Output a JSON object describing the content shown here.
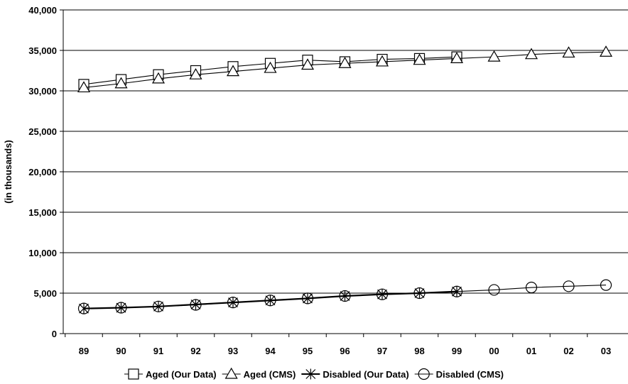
{
  "chart_data": {
    "type": "line",
    "title": "",
    "xlabel": "",
    "ylabel": "(in thousands)",
    "categories": [
      "89",
      "90",
      "91",
      "92",
      "93",
      "94",
      "95",
      "96",
      "97",
      "98",
      "99",
      "00",
      "01",
      "02",
      "03"
    ],
    "ylim": [
      0,
      40000
    ],
    "yticks": [
      0,
      5000,
      10000,
      15000,
      20000,
      25000,
      30000,
      35000,
      40000
    ],
    "ytick_labels": [
      "0",
      "5,000",
      "10,000",
      "15,000",
      "20,000",
      "25,000",
      "30,000",
      "35,000",
      "40,000"
    ],
    "grid": "horizontal",
    "legend": "bottom",
    "series": [
      {
        "name": "Aged (Our Data)",
        "marker": "square",
        "values": [
          30800,
          31400,
          32000,
          32500,
          33000,
          33400,
          33800,
          33600,
          33900,
          34000,
          34200,
          null,
          null,
          null,
          null
        ]
      },
      {
        "name": "Aged (CMS)",
        "marker": "triangle",
        "values": [
          30400,
          30900,
          31500,
          32000,
          32400,
          32800,
          33200,
          33400,
          33600,
          33800,
          34000,
          34200,
          34500,
          34700,
          34800
        ]
      },
      {
        "name": "Disabled (Our Data)",
        "marker": "asterisk",
        "values": [
          3100,
          3200,
          3350,
          3600,
          3850,
          4100,
          4350,
          4650,
          4850,
          5000,
          5200,
          null,
          null,
          null,
          null
        ]
      },
      {
        "name": "Disabled (CMS)",
        "marker": "circle",
        "values": [
          3100,
          3200,
          3350,
          3550,
          3850,
          4100,
          4350,
          4650,
          4850,
          5000,
          5200,
          5400,
          5700,
          5850,
          6000
        ]
      }
    ]
  }
}
